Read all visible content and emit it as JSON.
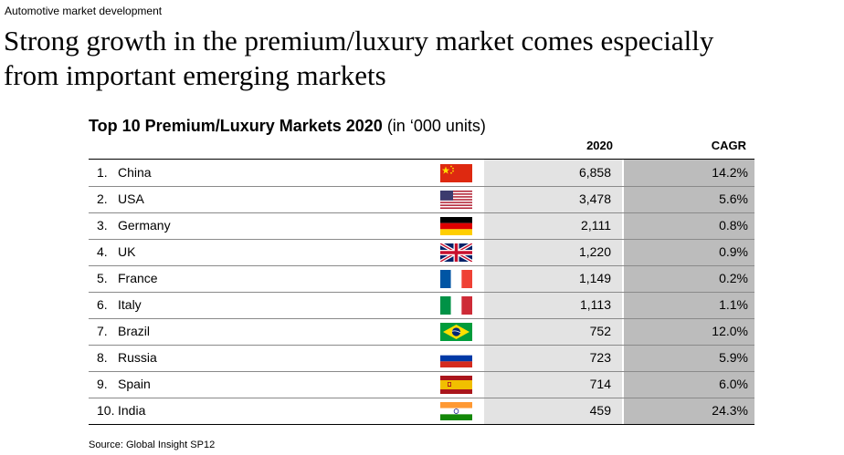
{
  "kicker": "Automotive market development",
  "headline_line1": "Strong growth in the premium/luxury market comes especially",
  "headline_line2": "from important emerging markets",
  "table_title_bold": "Top 10 Premium/Luxury Markets 2020",
  "table_title_unit": "(in ‘000 units)",
  "col_2020": "2020",
  "col_cagr": "CAGR",
  "rows": [
    {
      "rank": "1.",
      "country": "China",
      "flag": "china-flag-icon",
      "value": "6,858",
      "cagr": "14.2%"
    },
    {
      "rank": "2.",
      "country": "USA",
      "flag": "usa-flag-icon",
      "value": "3,478",
      "cagr": "5.6%"
    },
    {
      "rank": "3.",
      "country": "Germany",
      "flag": "germany-flag-icon",
      "value": "2,111",
      "cagr": "0.8%"
    },
    {
      "rank": "4.",
      "country": "UK",
      "flag": "uk-flag-icon",
      "value": "1,220",
      "cagr": "0.9%"
    },
    {
      "rank": "5.",
      "country": "France",
      "flag": "france-flag-icon",
      "value": "1,149",
      "cagr": "0.2%"
    },
    {
      "rank": "6.",
      "country": "Italy",
      "flag": "italy-flag-icon",
      "value": "1,113",
      "cagr": "1.1%"
    },
    {
      "rank": "7.",
      "country": "Brazil",
      "flag": "brazil-flag-icon",
      "value": "752",
      "cagr": "12.0%"
    },
    {
      "rank": "8.",
      "country": "Russia",
      "flag": "russia-flag-icon",
      "value": "723",
      "cagr": "5.9%"
    },
    {
      "rank": "9.",
      "country": "Spain",
      "flag": "spain-flag-icon",
      "value": "714",
      "cagr": "6.0%"
    },
    {
      "rank": "10.",
      "country": "India",
      "flag": "india-flag-icon",
      "value": "459",
      "cagr": "24.3%"
    }
  ],
  "source": "Source: Global Insight SP12"
}
